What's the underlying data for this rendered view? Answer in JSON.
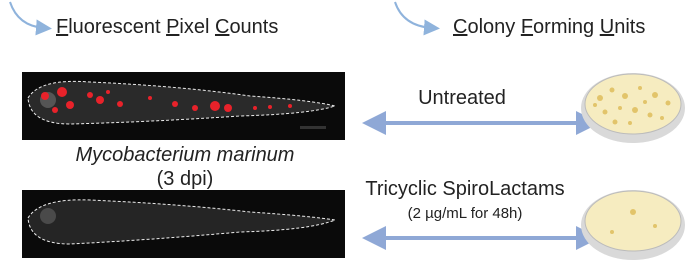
{
  "header": {
    "left_title": [
      "Fluorescent",
      "Pixel",
      "Counts"
    ],
    "right_title": [
      "Colony",
      "Forming",
      "Units"
    ]
  },
  "labels": {
    "untreated": "Untreated",
    "species": "Mycobacterium marinum",
    "timepoint": "(3 dpi)",
    "treatment": "Tricyclic SpiroLactams",
    "dose": "(2 µg/mL for 48h)"
  }
}
